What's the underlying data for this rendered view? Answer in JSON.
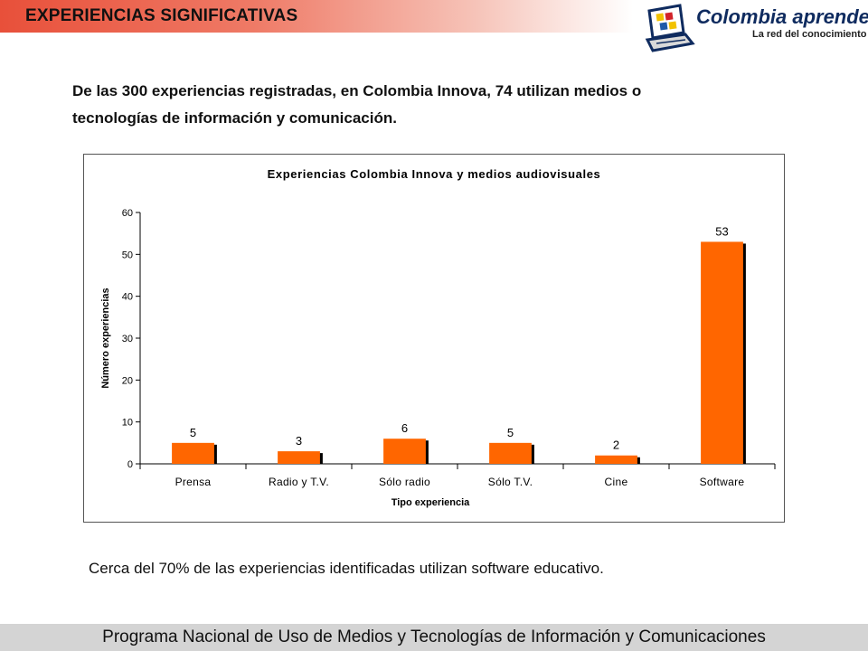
{
  "header": {
    "title": "EXPERIENCIAS SIGNIFICATIVAS"
  },
  "logo": {
    "name": "Colombia aprende",
    "tagline": "La red del conocimiento",
    "icon": "laptop-logo-icon",
    "colors": [
      "#0f2b5f",
      "#f2c200",
      "#d2232a",
      "#1e5aa8"
    ]
  },
  "intro": {
    "line1": "De las 300 experiencias registradas, en Colombia Innova, 74 utilizan medios o",
    "line2": "tecnologías de información y comunicación."
  },
  "chart_data": {
    "type": "bar",
    "title": "Experiencias Colombia Innova y medios audiovisuales",
    "xlabel": "Tipo experiencia",
    "ylabel": "Número experiencias",
    "categories": [
      "Prensa",
      "Radio y T.V.",
      "Sólo radio",
      "Sólo T.V.",
      "Cine",
      "Software"
    ],
    "values": [
      5,
      3,
      6,
      5,
      2,
      53
    ],
    "value_labels": [
      "5",
      "3",
      "6",
      "5",
      "2",
      "53"
    ],
    "ylim": [
      0,
      60
    ],
    "yticks": [
      "0",
      "10",
      "20",
      "30",
      "40",
      "50",
      "60"
    ],
    "grid": false,
    "legend": "none",
    "bar_color": "#ff6600",
    "shadow_color": "#000000"
  },
  "conclusion": "Cerca del 70% de las experiencias identificadas utilizan software educativo.",
  "footer": "Programa Nacional de Uso de Medios y Tecnologías de Información y Comunicaciones"
}
